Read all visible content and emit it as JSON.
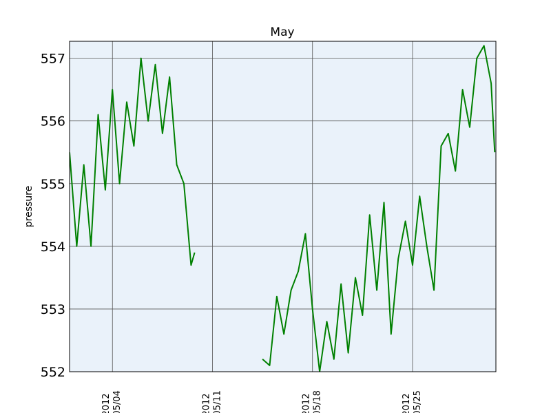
{
  "chart_data": {
    "type": "line",
    "title": "May",
    "y_label": "pressure",
    "x": [
      "2012-05-01 00:00",
      "2012-05-01 12:00",
      "2012-05-02 00:00",
      "2012-05-02 12:00",
      "2012-05-03 00:00",
      "2012-05-03 12:00",
      "2012-05-04 00:00",
      "2012-05-04 12:00",
      "2012-05-05 00:00",
      "2012-05-05 12:00",
      "2012-05-06 00:00",
      "2012-05-06 12:00",
      "2012-05-07 00:00",
      "2012-05-07 12:00",
      "2012-05-08 00:00",
      "2012-05-08 12:00",
      "2012-05-09 00:00",
      "2012-05-09 12:00",
      "2012-05-09 18:00",
      "2012-05-12 00:00",
      "2012-05-14 12:00",
      "2012-05-15 00:00",
      "2012-05-15 12:00",
      "2012-05-16 00:00",
      "2012-05-16 12:00",
      "2012-05-17 00:00",
      "2012-05-17 12:00",
      "2012-05-18 00:00",
      "2012-05-18 12:00",
      "2012-05-19 00:00",
      "2012-05-19 12:00",
      "2012-05-20 00:00",
      "2012-05-20 12:00",
      "2012-05-21 00:00",
      "2012-05-21 12:00",
      "2012-05-22 00:00",
      "2012-05-22 12:00",
      "2012-05-23 00:00",
      "2012-05-23 12:00",
      "2012-05-24 00:00",
      "2012-05-24 12:00",
      "2012-05-25 00:00",
      "2012-05-25 12:00",
      "2012-05-26 00:00",
      "2012-05-26 12:00",
      "2012-05-27 00:00",
      "2012-05-27 12:00",
      "2012-05-28 00:00",
      "2012-05-28 12:00",
      "2012-05-29 00:00",
      "2012-05-29 12:00",
      "2012-05-30 00:00",
      "2012-05-30 12:00",
      "2012-05-30 18:00"
    ],
    "series": [
      {
        "name": "pressure",
        "color": "#008000",
        "values": [
          555.5,
          554.0,
          555.3,
          554.0,
          556.1,
          554.9,
          556.5,
          555.0,
          556.3,
          555.6,
          557.0,
          556.0,
          556.9,
          555.8,
          556.7,
          555.3,
          555.0,
          553.7,
          553.9,
          null,
          552.2,
          552.1,
          553.2,
          552.6,
          553.3,
          553.6,
          554.2,
          553.0,
          552.0,
          552.8,
          552.2,
          553.4,
          552.3,
          553.5,
          552.9,
          554.5,
          553.3,
          554.7,
          552.6,
          553.8,
          554.4,
          553.7,
          554.8,
          554.0,
          553.3,
          555.6,
          555.8,
          555.2,
          556.5,
          555.9,
          557.0,
          557.2,
          556.6,
          555.5
        ]
      }
    ],
    "xlim": [
      "2012-05-01 00:00",
      "2012-05-30 20:00"
    ],
    "xticks": [
      {
        "value": "2012-05-04 00:00",
        "label": "2012\n/05/04"
      },
      {
        "value": "2012-05-11 00:00",
        "label": "2012\n/05/11"
      },
      {
        "value": "2012-05-18 00:00",
        "label": "2012\n/05/18"
      },
      {
        "value": "2012-05-25 00:00",
        "label": "2012\n/05/25"
      }
    ],
    "ylim": [
      552,
      557.27
    ],
    "yticks": [
      552,
      553,
      554,
      555,
      556,
      557
    ],
    "grid": true,
    "background": "#eaf2fa"
  }
}
